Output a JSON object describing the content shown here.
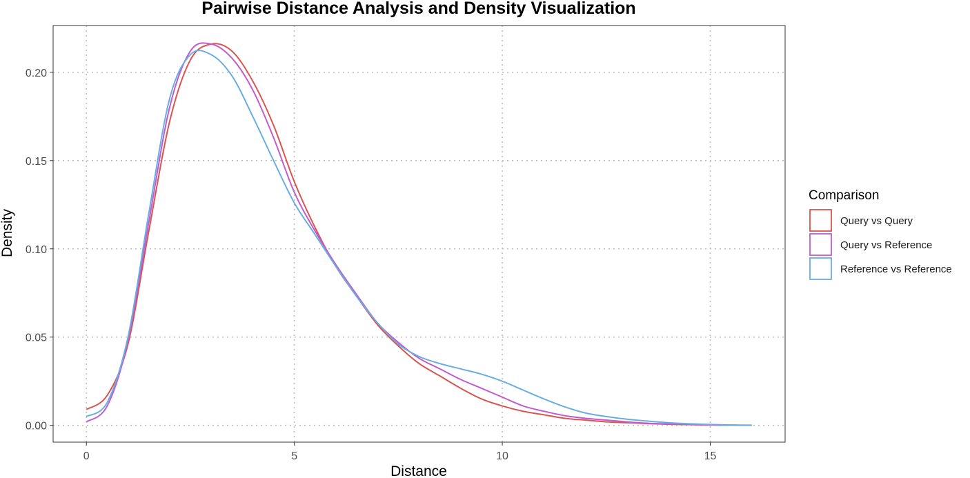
{
  "chart_data": {
    "type": "line",
    "title": "Pairwise Distance Analysis and Density Visualization",
    "xlabel": "Distance",
    "ylabel": "Density",
    "xlim": [
      -0.8,
      16.8
    ],
    "ylim": [
      -0.0095,
      0.2265
    ],
    "x_ticks": [
      0,
      5,
      10,
      15
    ],
    "x_tick_labels": [
      "0",
      "5",
      "10",
      "15"
    ],
    "y_ticks": [
      0,
      0.05,
      0.1,
      0.15,
      0.2
    ],
    "y_tick_labels": [
      "0.00",
      "0.05",
      "0.10",
      "0.15",
      "0.20"
    ],
    "grid": true,
    "legend": {
      "title": "Comparison",
      "position": "right"
    },
    "x": [
      0,
      0.5,
      1,
      1.5,
      2,
      2.5,
      3,
      3.5,
      4,
      4.5,
      5,
      5.5,
      6,
      6.5,
      7,
      7.5,
      8,
      8.5,
      9,
      9.5,
      10,
      10.5,
      11,
      11.5,
      12,
      12.5,
      13,
      13.5,
      14,
      14.5,
      15,
      15.5,
      16
    ],
    "series": [
      {
        "name": "Query vs Query",
        "color": "#D95450",
        "values": [
          0.009,
          0.017,
          0.046,
          0.11,
          0.172,
          0.207,
          0.216,
          0.212,
          0.195,
          0.17,
          0.138,
          0.112,
          0.09,
          0.073,
          0.057,
          0.045,
          0.035,
          0.028,
          0.021,
          0.015,
          0.011,
          0.008,
          0.006,
          0.004,
          0.003,
          0.002,
          0.0015,
          0.001,
          0.0006,
          0.0004,
          0.0002,
          0.0001,
          5e-05
        ]
      },
      {
        "name": "Query vs Reference",
        "color": "#C15BD0",
        "values": [
          0.002,
          0.011,
          0.048,
          0.115,
          0.18,
          0.212,
          0.216,
          0.208,
          0.19,
          0.163,
          0.132,
          0.11,
          0.091,
          0.074,
          0.058,
          0.047,
          0.038,
          0.032,
          0.026,
          0.021,
          0.016,
          0.011,
          0.008,
          0.0055,
          0.004,
          0.003,
          0.002,
          0.0012,
          0.0008,
          0.0005,
          0.0003,
          0.0001,
          5e-05
        ]
      },
      {
        "name": "Reference vs Reference",
        "color": "#6AADE0",
        "values": [
          0.005,
          0.013,
          0.05,
          0.12,
          0.185,
          0.21,
          0.21,
          0.198,
          0.175,
          0.15,
          0.126,
          0.108,
          0.09,
          0.073,
          0.058,
          0.046,
          0.039,
          0.035,
          0.032,
          0.029,
          0.025,
          0.02,
          0.015,
          0.0105,
          0.007,
          0.005,
          0.0035,
          0.0024,
          0.0015,
          0.0009,
          0.0005,
          0.0002,
          0.0001
        ]
      }
    ]
  }
}
